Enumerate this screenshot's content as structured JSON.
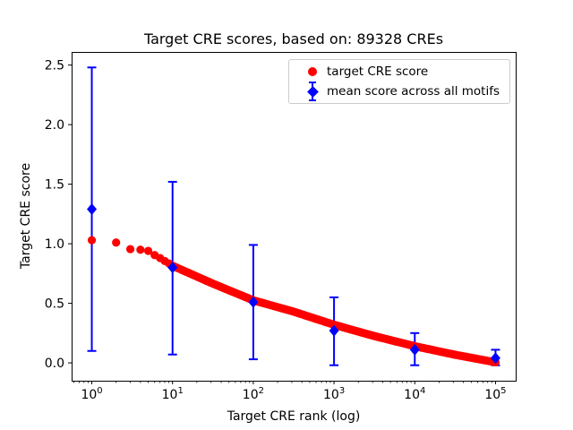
{
  "window": {
    "background": "#ffffff",
    "axis_color": "#000000",
    "legend_border_color": "#cccccc"
  },
  "chart_data": {
    "type": "scatter",
    "title": "Target CRE scores, based on: 89328 CREs",
    "xlabel": "Target CRE rank (log)",
    "ylabel": "Target CRE score",
    "x_scale": "log",
    "xlim_log10": [
      -0.25,
      5.25
    ],
    "ylim": [
      -0.15,
      2.61
    ],
    "grid": false,
    "legend_position": "upper right",
    "x_axis": {
      "ticks": [
        {
          "log10": 0,
          "base": "10",
          "exp": "0"
        },
        {
          "log10": 1,
          "base": "10",
          "exp": "1"
        },
        {
          "log10": 2,
          "base": "10",
          "exp": "2"
        },
        {
          "log10": 3,
          "base": "10",
          "exp": "3"
        },
        {
          "log10": 4,
          "base": "10",
          "exp": "4"
        },
        {
          "log10": 5,
          "base": "10",
          "exp": "5"
        }
      ],
      "minor_subs": [
        2,
        3,
        4,
        5,
        6,
        7,
        8,
        9
      ]
    },
    "y_axis": {
      "ticks": [
        {
          "value": 0.0,
          "label": "0.0"
        },
        {
          "value": 0.5,
          "label": "0.5"
        },
        {
          "value": 1.0,
          "label": "1.0"
        },
        {
          "value": 1.5,
          "label": "1.5"
        },
        {
          "value": 2.0,
          "label": "2.0"
        },
        {
          "value": 2.5,
          "label": "2.5"
        }
      ]
    },
    "series": [
      {
        "name": "target CRE score",
        "marker": "circle",
        "color": "#ff0000",
        "curve": {
          "log10_rank": [
            0,
            0.301,
            0.477,
            0.602,
            0.699,
            0.778,
            0.845,
            0.903,
            0.954,
            1.0,
            1.5,
            2.0,
            2.5,
            3.0,
            3.5,
            4.0,
            4.5,
            5.0
          ],
          "score": [
            1.03,
            1.01,
            0.955,
            0.95,
            0.94,
            0.905,
            0.88,
            0.855,
            0.835,
            0.815,
            0.665,
            0.525,
            0.43,
            0.32,
            0.225,
            0.14,
            0.068,
            0.005
          ]
        }
      },
      {
        "name": "mean score across all motifs",
        "marker": "diamond",
        "color": "#0000ff",
        "points": [
          {
            "rank": 1,
            "log10_rank": 0,
            "mean": 1.29,
            "lo": 0.1,
            "hi": 2.48
          },
          {
            "rank": 10,
            "log10_rank": 1,
            "mean": 0.8,
            "lo": 0.07,
            "hi": 1.52
          },
          {
            "rank": 100,
            "log10_rank": 2,
            "mean": 0.51,
            "lo": 0.03,
            "hi": 0.99
          },
          {
            "rank": 1000,
            "log10_rank": 3,
            "mean": 0.27,
            "lo": -0.02,
            "hi": 0.55
          },
          {
            "rank": 10000,
            "log10_rank": 4,
            "mean": 0.11,
            "lo": -0.02,
            "hi": 0.25
          },
          {
            "rank": 100000,
            "log10_rank": 5,
            "mean": 0.04,
            "lo": -0.02,
            "hi": 0.11
          }
        ]
      }
    ]
  }
}
